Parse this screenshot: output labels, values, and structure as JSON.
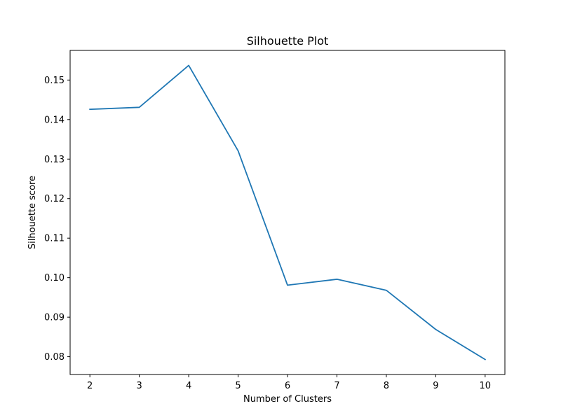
{
  "chart_data": {
    "type": "line",
    "title": "Silhouette Plot",
    "xlabel": "Number of Clusters",
    "ylabel": "Silhouette score",
    "x": [
      2,
      3,
      4,
      5,
      6,
      7,
      8,
      9,
      10
    ],
    "series": [
      {
        "values": [
          0.1426,
          0.1431,
          0.1537,
          0.1321,
          0.0981,
          0.0996,
          0.0968,
          0.0869,
          0.0793
        ],
        "color": "#1f77b4"
      }
    ],
    "xticks": [
      2,
      3,
      4,
      5,
      6,
      7,
      8,
      9,
      10
    ],
    "xtick_labels": [
      "2",
      "3",
      "4",
      "5",
      "6",
      "7",
      "8",
      "9",
      "10"
    ],
    "yticks": [
      0.08,
      0.09,
      0.1,
      0.11,
      0.12,
      0.13,
      0.14,
      0.15
    ],
    "ytick_labels": [
      "0.08",
      "0.09",
      "0.10",
      "0.11",
      "0.12",
      "0.13",
      "0.14",
      "0.15"
    ],
    "xlim": [
      1.6,
      10.4
    ],
    "ylim": [
      0.0755,
      0.1575
    ],
    "grid": false,
    "legend": false
  }
}
